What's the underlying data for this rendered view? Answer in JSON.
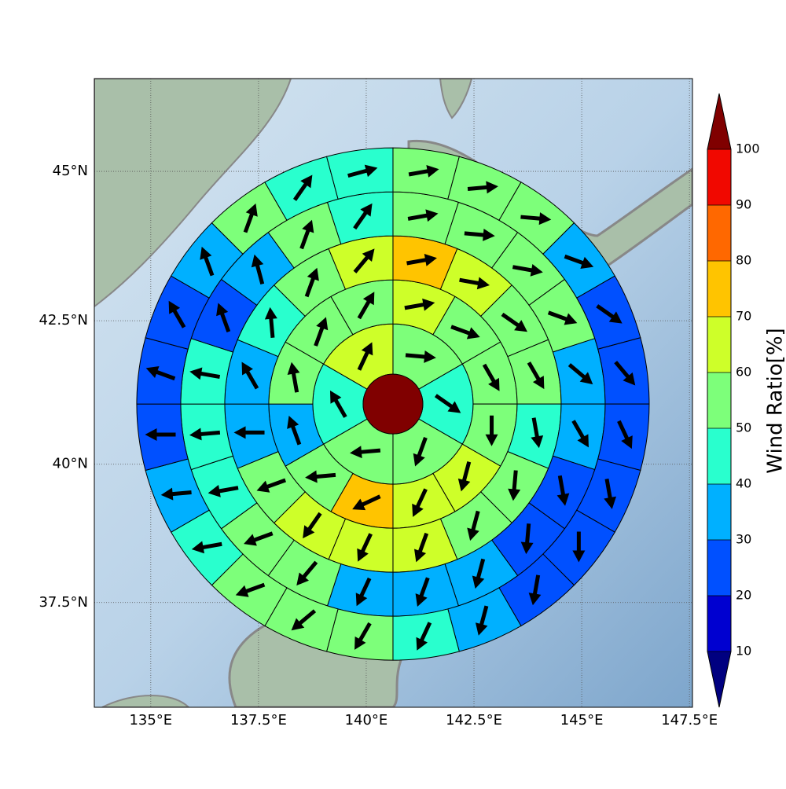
{
  "chart_data": {
    "type": "polar-map",
    "lonlim": [
      133.69,
      147.57
    ],
    "latlim": [
      35.55,
      46.5
    ],
    "lonticks": [
      {
        "value": 135,
        "label": "135°E"
      },
      {
        "value": 137.5,
        "label": "137.5°E"
      },
      {
        "value": 140,
        "label": "140°E"
      },
      {
        "value": 142.5,
        "label": "142.5°E"
      },
      {
        "value": 145,
        "label": "145°E"
      },
      {
        "value": 147.5,
        "label": "147.5°E"
      }
    ],
    "latticks": [
      {
        "value": 37.5,
        "label": "37.5°N"
      },
      {
        "value": 40,
        "label": "40°N"
      },
      {
        "value": 42.5,
        "label": "42.5°N"
      },
      {
        "value": 45,
        "label": "45°N"
      }
    ],
    "grid": true,
    "center": {
      "lon": 140.62,
      "lat": 41.06,
      "color": "#800000"
    },
    "rings": [
      {
        "values": [
          55,
          45,
          55,
          55,
          45,
          65
        ],
        "directions": [
          95,
          125,
          200,
          265,
          330,
          25
        ]
      },
      {
        "values": [
          65,
          55,
          55,
          55,
          65,
          65,
          75,
          55,
          35,
          55,
          55,
          55
        ],
        "directions": [
          80,
          110,
          150,
          180,
          195,
          205,
          245,
          265,
          340,
          350,
          20,
          30
        ]
      },
      {
        "values": [
          75,
          65,
          55,
          55,
          45,
          55,
          55,
          65,
          65,
          65,
          55,
          35,
          35,
          45,
          55,
          65
        ],
        "directions": [
          80,
          100,
          125,
          150,
          170,
          185,
          195,
          200,
          205,
          215,
          250,
          270,
          330,
          355,
          20,
          40
        ]
      },
      {
        "values": [
          55,
          55,
          55,
          55,
          35,
          35,
          25,
          25,
          35,
          35,
          35,
          55,
          55,
          45,
          45,
          45,
          25,
          35,
          55,
          45
        ],
        "directions": [
          80,
          95,
          100,
          110,
          130,
          150,
          170,
          185,
          195,
          200,
          205,
          220,
          250,
          260,
          265,
          280,
          340,
          345,
          20,
          35
        ]
      },
      {
        "values": [
          55,
          55,
          55,
          35,
          20,
          20,
          20,
          25,
          25,
          25,
          35,
          45,
          55,
          55,
          55,
          45,
          35,
          25,
          25,
          25,
          35,
          55,
          45,
          45
        ],
        "directions": [
          80,
          85,
          95,
          110,
          125,
          140,
          155,
          170,
          180,
          190,
          195,
          205,
          210,
          230,
          250,
          260,
          265,
          270,
          290,
          330,
          340,
          20,
          35,
          75
        ]
      }
    ],
    "colorbar": {
      "label": "Wind Ratio[%]",
      "ticks": [
        10,
        20,
        30,
        40,
        50,
        60,
        70,
        80,
        90,
        100
      ],
      "colors": [
        "#0000d0",
        "#0050ff",
        "#00b0ff",
        "#29ffce",
        "#7dff7a",
        "#ceff29",
        "#ffc400",
        "#ff6800",
        "#f10800"
      ],
      "under": "#000080",
      "over": "#800000"
    }
  }
}
